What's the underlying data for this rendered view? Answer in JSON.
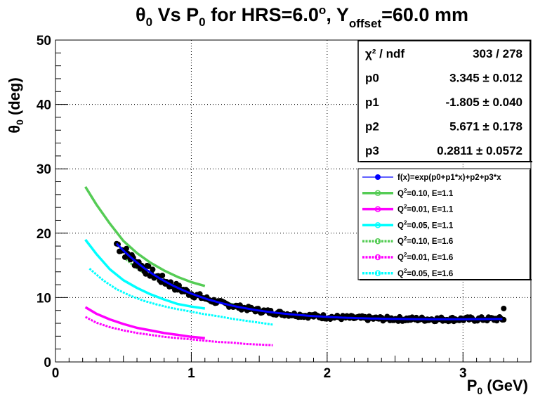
{
  "chart_data": {
    "type": "scatter",
    "title": {
      "prefix": "θ",
      "prefix_sub": "0",
      "mid1": " Vs P",
      "mid1_sub": "0",
      "mid2": " for HRS=6.0",
      "mid2_sup": "o",
      "mid3": ", Y",
      "mid3_sub": "offset",
      "suffix": "=60.0 mm"
    },
    "xlabel": {
      "main": "P",
      "sub": "0",
      "rest": " (GeV)"
    },
    "ylabel": {
      "main": "θ",
      "sub": "0",
      "rest": " (deg)"
    },
    "xlim": [
      0,
      3.5
    ],
    "ylim": [
      0,
      50
    ],
    "x_ticks": [
      0,
      1,
      2,
      3
    ],
    "x_tick_labels": [
      "0",
      "1",
      "2",
      "3"
    ],
    "y_ticks": [
      0,
      10,
      20,
      30,
      40,
      50
    ],
    "y_tick_labels": [
      "0",
      "10",
      "20",
      "30",
      "40",
      "50"
    ],
    "grid": true,
    "fit_stats": [
      {
        "label": "χ² / ndf",
        "value": "303 / 278"
      },
      {
        "label": "p0",
        "value": "3.345 ± 0.012"
      },
      {
        "label": "p1",
        "value": "-1.805 ± 0.040"
      },
      {
        "label": "p2",
        "value": "5.671 ± 0.178"
      },
      {
        "label": "p3",
        "value": "0.2811 ± 0.0572"
      }
    ],
    "fit": {
      "name": "f(x)=exp(p0+p1*x)+p2+p3*x",
      "p0": 3.345,
      "p1": -1.805,
      "p2": 5.671,
      "p3": 0.2811,
      "x_range": [
        0.45,
        3.3
      ],
      "color": "#0000ff"
    },
    "data_points": {
      "color": "#000000",
      "x_range": [
        0.45,
        3.3
      ],
      "scatter": 0.35,
      "extra_points": [
        [
          3.3,
          8.3
        ]
      ]
    },
    "legend": {
      "position": "right",
      "entries": [
        {
          "label": "f(x)=exp(p0+p1*x)+p2+p3*x",
          "color": "#0000ff",
          "style": "fit"
        },
        {
          "label_main": "Q",
          "label_sup": "2",
          "label_rest": "=0.10, E=1.1",
          "color": "#55cc55",
          "style": "solid"
        },
        {
          "label_main": "Q",
          "label_sup": "2",
          "label_rest": "=0.01, E=1.1",
          "color": "#ff00ff",
          "style": "solid"
        },
        {
          "label_main": "Q",
          "label_sup": "2",
          "label_rest": "=0.05, E=1.1",
          "color": "#00ffff",
          "style": "solid"
        },
        {
          "label_main": "Q",
          "label_sup": "2",
          "label_rest": "=0.10, E=1.6",
          "color": "#55cc55",
          "style": "dashed"
        },
        {
          "label_main": "Q",
          "label_sup": "2",
          "label_rest": "=0.01, E=1.6",
          "color": "#ff00ff",
          "style": "dashed"
        },
        {
          "label_main": "Q",
          "label_sup": "2",
          "label_rest": "=0.05, E=1.6",
          "color": "#00ffff",
          "style": "dashed"
        }
      ]
    },
    "series": [
      {
        "name": "Q²=0.10, E=1.1",
        "color": "#55cc55",
        "style": "solid",
        "x": [
          0.22,
          0.3,
          0.4,
          0.5,
          0.6,
          0.7,
          0.8,
          0.9,
          1.0,
          1.1
        ],
        "y": [
          27.2,
          24.5,
          21.5,
          18.8,
          16.9,
          15.4,
          14.2,
          13.2,
          12.4,
          11.8
        ]
      },
      {
        "name": "Q²=0.01, E=1.1",
        "color": "#ff00ff",
        "style": "solid",
        "x": [
          0.22,
          0.3,
          0.4,
          0.5,
          0.6,
          0.7,
          0.8,
          0.9,
          1.0,
          1.1
        ],
        "y": [
          8.5,
          7.5,
          6.6,
          5.9,
          5.3,
          4.9,
          4.5,
          4.2,
          3.9,
          3.7
        ]
      },
      {
        "name": "Q²=0.05, E=1.1",
        "color": "#00ffff",
        "style": "solid",
        "x": [
          0.22,
          0.3,
          0.4,
          0.5,
          0.6,
          0.7,
          0.8,
          0.9,
          1.0,
          1.1
        ],
        "y": [
          19.0,
          16.8,
          14.4,
          12.7,
          11.5,
          10.5,
          9.7,
          9.0,
          8.6,
          8.3
        ]
      },
      {
        "name": "Q²=0.10, E=1.6",
        "color": "#55cc55",
        "style": "dashed",
        "x": [
          0.5,
          0.6,
          0.7,
          0.8,
          0.9,
          1.0,
          1.1,
          1.2,
          1.3,
          1.4,
          1.5,
          1.6
        ],
        "y": [
          16.3,
          14.5,
          13.2,
          12.2,
          11.3,
          10.6,
          10.0,
          9.5,
          9.0,
          8.6,
          8.2,
          7.9
        ]
      },
      {
        "name": "Q²=0.01, E=1.6",
        "color": "#ff00ff",
        "style": "dashed",
        "x": [
          0.22,
          0.3,
          0.4,
          0.5,
          0.6,
          0.7,
          0.8,
          0.9,
          1.0,
          1.1,
          1.2,
          1.3,
          1.4,
          1.5,
          1.6
        ],
        "y": [
          7.0,
          6.1,
          5.4,
          4.9,
          4.5,
          4.2,
          3.9,
          3.7,
          3.5,
          3.3,
          3.1,
          3.0,
          2.8,
          2.7,
          2.6
        ]
      },
      {
        "name": "Q²=0.05, E=1.6",
        "color": "#00ffff",
        "style": "dashed",
        "x": [
          0.25,
          0.35,
          0.45,
          0.55,
          0.65,
          0.75,
          0.85,
          0.95,
          1.1,
          1.2,
          1.3,
          1.4,
          1.5,
          1.6
        ],
        "y": [
          14.5,
          12.7,
          11.3,
          10.3,
          9.5,
          8.9,
          8.4,
          8.0,
          7.4,
          7.1,
          6.7,
          6.4,
          6.1,
          5.8
        ]
      }
    ]
  }
}
